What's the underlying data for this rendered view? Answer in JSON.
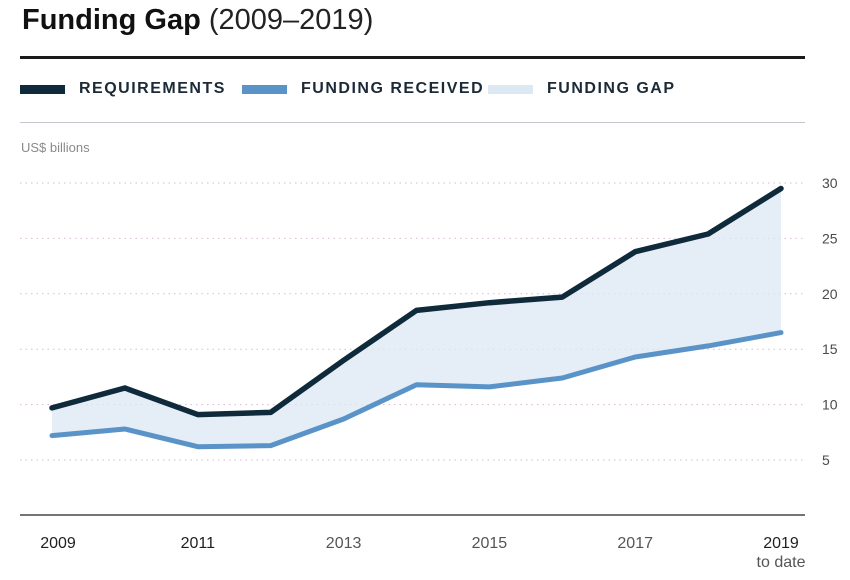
{
  "header": {
    "title_main": "Funding Gap",
    "title_sub": "(2009–2019)"
  },
  "legend": [
    {
      "label": "REQUIREMENTS",
      "color": "#0e2a3b",
      "kind": "line"
    },
    {
      "label": "FUNDING RECEIVED",
      "color": "#5a93c8",
      "kind": "line"
    },
    {
      "label": "FUNDING GAP",
      "color": "#dce8f3",
      "kind": "area"
    }
  ],
  "chart_data": {
    "type": "line",
    "title": "Funding Gap (2009–2019)",
    "ylabel": "US$ billions",
    "xlabel": "",
    "ylim": [
      0,
      30
    ],
    "yticks": [
      5,
      10,
      15,
      20,
      25,
      30
    ],
    "x": [
      2009,
      2010,
      2011,
      2012,
      2013,
      2014,
      2015,
      2016,
      2017,
      2018,
      2019
    ],
    "xtick_labels": [
      {
        "year": 2009,
        "line1": "2009",
        "line2": ""
      },
      {
        "year": 2011,
        "line1": "2011",
        "line2": ""
      },
      {
        "year": 2013,
        "line1": "2013",
        "line2": ""
      },
      {
        "year": 2015,
        "line1": "2015",
        "line2": ""
      },
      {
        "year": 2017,
        "line1": "2017",
        "line2": ""
      },
      {
        "year": 2019,
        "line1": "2019",
        "line2": "to date"
      }
    ],
    "series": [
      {
        "name": "Requirements",
        "color": "#0e2a3b",
        "values": [
          9.7,
          11.5,
          9.1,
          9.3,
          14.0,
          18.5,
          19.2,
          19.7,
          23.8,
          25.4,
          29.5
        ]
      },
      {
        "name": "Funding received",
        "color": "#5a93c8",
        "values": [
          7.2,
          7.8,
          6.2,
          6.3,
          8.7,
          11.8,
          11.6,
          12.4,
          14.3,
          15.3,
          16.5
        ]
      }
    ],
    "gap_fill": {
      "name": "Funding gap",
      "color": "#dce8f3"
    },
    "grid": true,
    "legend_position": "top"
  }
}
